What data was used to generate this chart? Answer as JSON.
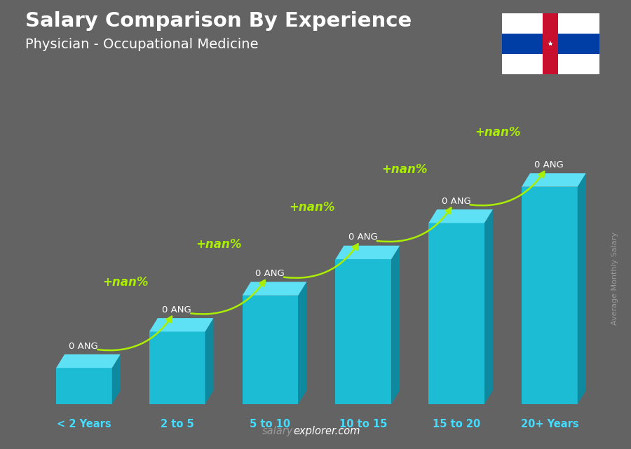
{
  "title_line1": "Salary Comparison By Experience",
  "title_line2": "Physician - Occupational Medicine",
  "categories": [
    "< 2 Years",
    "2 to 5",
    "5 to 10",
    "10 to 15",
    "15 to 20",
    "20+ Years"
  ],
  "values": [
    1,
    2,
    3,
    4,
    5,
    6
  ],
  "salary_labels": [
    "0 ANG",
    "0 ANG",
    "0 ANG",
    "0 ANG",
    "0 ANG",
    "0 ANG"
  ],
  "increase_labels": [
    "+nan%",
    "+nan%",
    "+nan%",
    "+nan%",
    "+nan%"
  ],
  "ylabel": "Average Monthly Salary",
  "background_color": "#636363",
  "front_color": "#1bbcd4",
  "top_color": "#5ee0f5",
  "side_color": "#0e8aa0",
  "increase_color": "#aaee00",
  "xlabel_color": "#44ddff",
  "title_color": "#ffffff",
  "salary_label_color": "#ffffff",
  "footer_salary_color": "#999999",
  "footer_explorer_color": "#ffffff",
  "ylabel_color": "#999999"
}
